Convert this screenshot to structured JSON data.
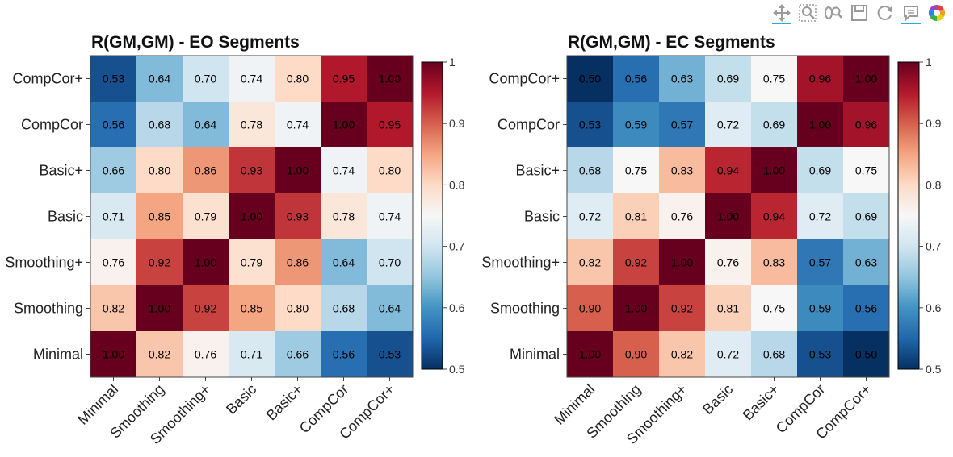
{
  "toolbar": {
    "items": [
      {
        "icon": "pan-icon",
        "active": true
      },
      {
        "icon": "box-zoom-icon",
        "active": false
      },
      {
        "icon": "wheel-zoom-icon",
        "active": false
      },
      {
        "icon": "save-icon",
        "active": false
      },
      {
        "icon": "reset-icon",
        "active": false
      },
      {
        "icon": "hover-icon",
        "active": true
      },
      {
        "icon": "bokeh-logo-icon",
        "active": false
      }
    ]
  },
  "chart_data": [
    {
      "type": "heatmap",
      "title": "R(GM,GM) - EO Segments",
      "x_categories": [
        "Minimal",
        "Smoothing",
        "Smoothing+",
        "Basic",
        "Basic+",
        "CompCor",
        "CompCor+"
      ],
      "y_categories": [
        "Minimal",
        "Smoothing",
        "Smoothing+",
        "Basic",
        "Basic+",
        "CompCor",
        "CompCor+"
      ],
      "values": [
        [
          "1.00",
          "0.82",
          "0.76",
          "0.71",
          "0.66",
          "0.56",
          "0.53"
        ],
        [
          "0.82",
          "1.00",
          "0.92",
          "0.85",
          "0.80",
          "0.68",
          "0.64"
        ],
        [
          "0.76",
          "0.92",
          "1.00",
          "0.79",
          "0.86",
          "0.64",
          "0.70"
        ],
        [
          "0.71",
          "0.85",
          "0.79",
          "1.00",
          "0.93",
          "0.78",
          "0.74"
        ],
        [
          "0.66",
          "0.80",
          "0.86",
          "0.93",
          "1.00",
          "0.74",
          "0.80"
        ],
        [
          "0.56",
          "0.68",
          "0.64",
          "0.78",
          "0.74",
          "1.00",
          "0.95"
        ],
        [
          "0.53",
          "0.64",
          "0.70",
          "0.74",
          "0.80",
          "0.95",
          "1.00"
        ]
      ],
      "colorbar": {
        "range": [
          0.5,
          1.0
        ],
        "ticks": [
          "0.5",
          "0.6",
          "0.7",
          "0.8",
          "0.9",
          "1"
        ],
        "colormap": "RdBu_r"
      }
    },
    {
      "type": "heatmap",
      "title": "R(GM,GM) - EC Segments",
      "x_categories": [
        "Minimal",
        "Smoothing",
        "Smoothing+",
        "Basic",
        "Basic+",
        "CompCor",
        "CompCor+"
      ],
      "y_categories": [
        "Minimal",
        "Smoothing",
        "Smoothing+",
        "Basic",
        "Basic+",
        "CompCor",
        "CompCor+"
      ],
      "values": [
        [
          "1.00",
          "0.90",
          "0.82",
          "0.72",
          "0.68",
          "0.53",
          "0.50"
        ],
        [
          "0.90",
          "1.00",
          "0.92",
          "0.81",
          "0.75",
          "0.59",
          "0.56"
        ],
        [
          "0.82",
          "0.92",
          "1.00",
          "0.76",
          "0.83",
          "0.57",
          "0.63"
        ],
        [
          "0.72",
          "0.81",
          "0.76",
          "1.00",
          "0.94",
          "0.72",
          "0.69"
        ],
        [
          "0.68",
          "0.75",
          "0.83",
          "0.94",
          "1.00",
          "0.69",
          "0.75"
        ],
        [
          "0.53",
          "0.59",
          "0.57",
          "0.72",
          "0.69",
          "1.00",
          "0.96"
        ],
        [
          "0.50",
          "0.56",
          "0.63",
          "0.69",
          "0.75",
          "0.96",
          "1.00"
        ]
      ],
      "colorbar": {
        "range": [
          0.5,
          1.0
        ],
        "ticks": [
          "0.5",
          "0.6",
          "0.7",
          "0.8",
          "0.9",
          "1"
        ],
        "colormap": "RdBu_r"
      }
    }
  ]
}
